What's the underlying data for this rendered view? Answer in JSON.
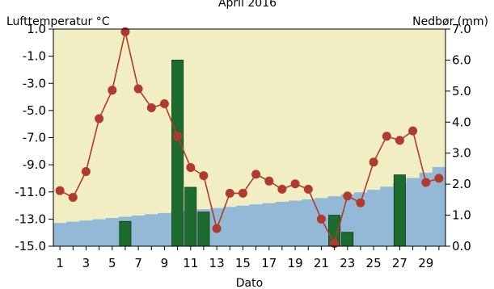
{
  "chart_data": {
    "type": "bar+line+area",
    "title": "April 2016",
    "left_axis_label": "Lufttemperatur °C",
    "right_axis_label": "Nedbør (mm)",
    "xlabel": "Dato",
    "x_ticks": [
      "1",
      "3",
      "5",
      "7",
      "9",
      "11",
      "13",
      "15",
      "17",
      "19",
      "21",
      "23",
      "25",
      "27",
      "29"
    ],
    "left_ticks": [
      "1.0",
      "-1.0",
      "-3.0",
      "-5.0",
      "-7.0",
      "-9.0",
      "-11.0",
      "-13.0",
      "-15.0"
    ],
    "right_ticks": [
      "7.0",
      "6.0",
      "5.0",
      "4.0",
      "3.0",
      "2.0",
      "1.0",
      "0.0"
    ],
    "ylim_left": [
      -15,
      1
    ],
    "ylim_right": [
      0,
      7
    ],
    "x": [
      1,
      2,
      3,
      4,
      5,
      6,
      7,
      8,
      9,
      10,
      11,
      12,
      13,
      14,
      15,
      16,
      17,
      18,
      19,
      20,
      21,
      22,
      23,
      24,
      25,
      26,
      27,
      28,
      29,
      30
    ],
    "series": [
      {
        "kind": "line",
        "axis": "left",
        "color": "#b03a2e",
        "values": [
          -10.9,
          -11.4,
          -9.5,
          -5.6,
          -3.5,
          0.8,
          -3.4,
          -4.8,
          -4.5,
          -6.9,
          -9.2,
          -9.8,
          -13.7,
          -11.1,
          -11.1,
          -9.7,
          -10.2,
          -10.8,
          -10.4,
          -10.8,
          -13.0,
          -14.8,
          -11.3,
          -11.8,
          -8.8,
          -6.9,
          -7.2,
          -6.5,
          -10.3,
          -10.0
        ]
      },
      {
        "kind": "bar",
        "axis": "right",
        "color": "#1d6b2e",
        "values": [
          0,
          0,
          0,
          0,
          0,
          0.8,
          0,
          0,
          0,
          6.0,
          1.9,
          1.1,
          0,
          0,
          0,
          0,
          0,
          0,
          0,
          0,
          0,
          1.0,
          0.45,
          0,
          0,
          0,
          2.3,
          0,
          0,
          0
        ]
      },
      {
        "kind": "area",
        "axis": "right",
        "color": "#93b9d6",
        "values": [
          0.75,
          0.79,
          0.83,
          0.87,
          0.91,
          0.95,
          0.99,
          1.03,
          1.07,
          1.11,
          1.15,
          1.19,
          1.23,
          1.27,
          1.31,
          1.35,
          1.39,
          1.43,
          1.47,
          1.51,
          1.55,
          1.61,
          1.67,
          1.74,
          1.82,
          1.92,
          2.05,
          2.2,
          2.37,
          2.55
        ]
      }
    ],
    "background_color": "#f2eec4",
    "grid": false,
    "legend": "none"
  }
}
